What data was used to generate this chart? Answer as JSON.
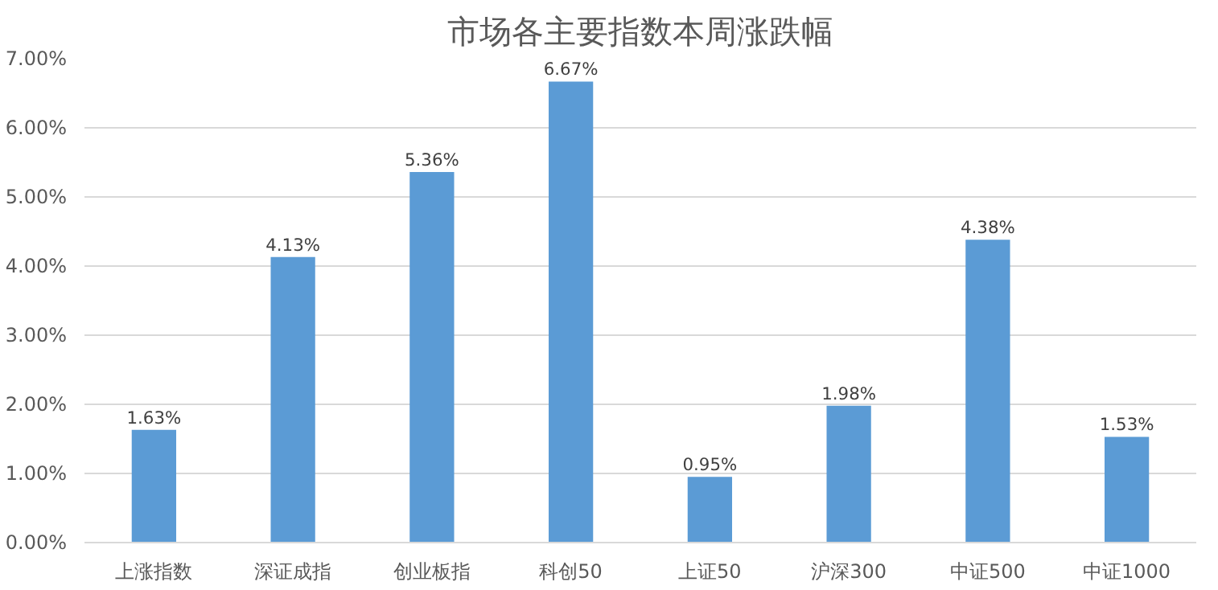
{
  "chart_data": {
    "type": "bar",
    "title": "市场各主要指数本周涨跌幅",
    "categories": [
      "上涨指数",
      "深证成指",
      "创业板指",
      "科创50",
      "上证50",
      "沪深300",
      "中证500",
      "中证1000"
    ],
    "values": [
      1.63,
      4.13,
      5.36,
      6.67,
      0.95,
      1.98,
      4.38,
      1.53
    ],
    "value_labels": [
      "1.63%",
      "4.13%",
      "5.36%",
      "6.67%",
      "0.95%",
      "1.98%",
      "4.38%",
      "1.53%"
    ],
    "color": "#5b9bd5",
    "ylim": [
      0,
      7
    ],
    "yticks": [
      {
        "value": 0,
        "label": "0.00%"
      },
      {
        "value": 1,
        "label": "1.00%"
      },
      {
        "value": 2,
        "label": "2.00%"
      },
      {
        "value": 3,
        "label": "3.00%"
      },
      {
        "value": 4,
        "label": "4.00%"
      },
      {
        "value": 5,
        "label": "5.00%"
      },
      {
        "value": 6,
        "label": "6.00%"
      },
      {
        "value": 7,
        "label": "7.00%"
      }
    ],
    "grid": "y"
  }
}
